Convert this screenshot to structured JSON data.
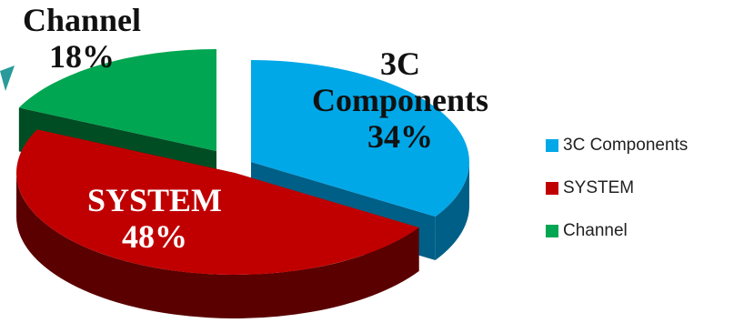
{
  "chart_data": {
    "type": "pie",
    "style": "3d-exploded",
    "slices": [
      {
        "name": "3C Components",
        "label_lines": [
          "3C",
          "Components"
        ],
        "value": 34,
        "value_label": "34%",
        "color": "#00a8e8",
        "side_color": "#005f86",
        "label_color": "#111111"
      },
      {
        "name": "SYSTEM",
        "label_lines": [
          "SYSTEM"
        ],
        "value": 48,
        "value_label": "48%",
        "color": "#c00000",
        "side_color": "#5a0000",
        "label_color": "#ffffff"
      },
      {
        "name": "Channel",
        "label_lines": [
          "Channel"
        ],
        "value": 18,
        "value_label": "18%",
        "color": "#00a651",
        "side_color": "#004d24",
        "label_color": "#111111"
      }
    ],
    "legend": {
      "position": "right",
      "items": [
        {
          "label": "3C Components",
          "color": "#00a8e8"
        },
        {
          "label": "SYSTEM",
          "color": "#c00000"
        },
        {
          "label": "Channel",
          "color": "#00a651"
        }
      ]
    }
  }
}
